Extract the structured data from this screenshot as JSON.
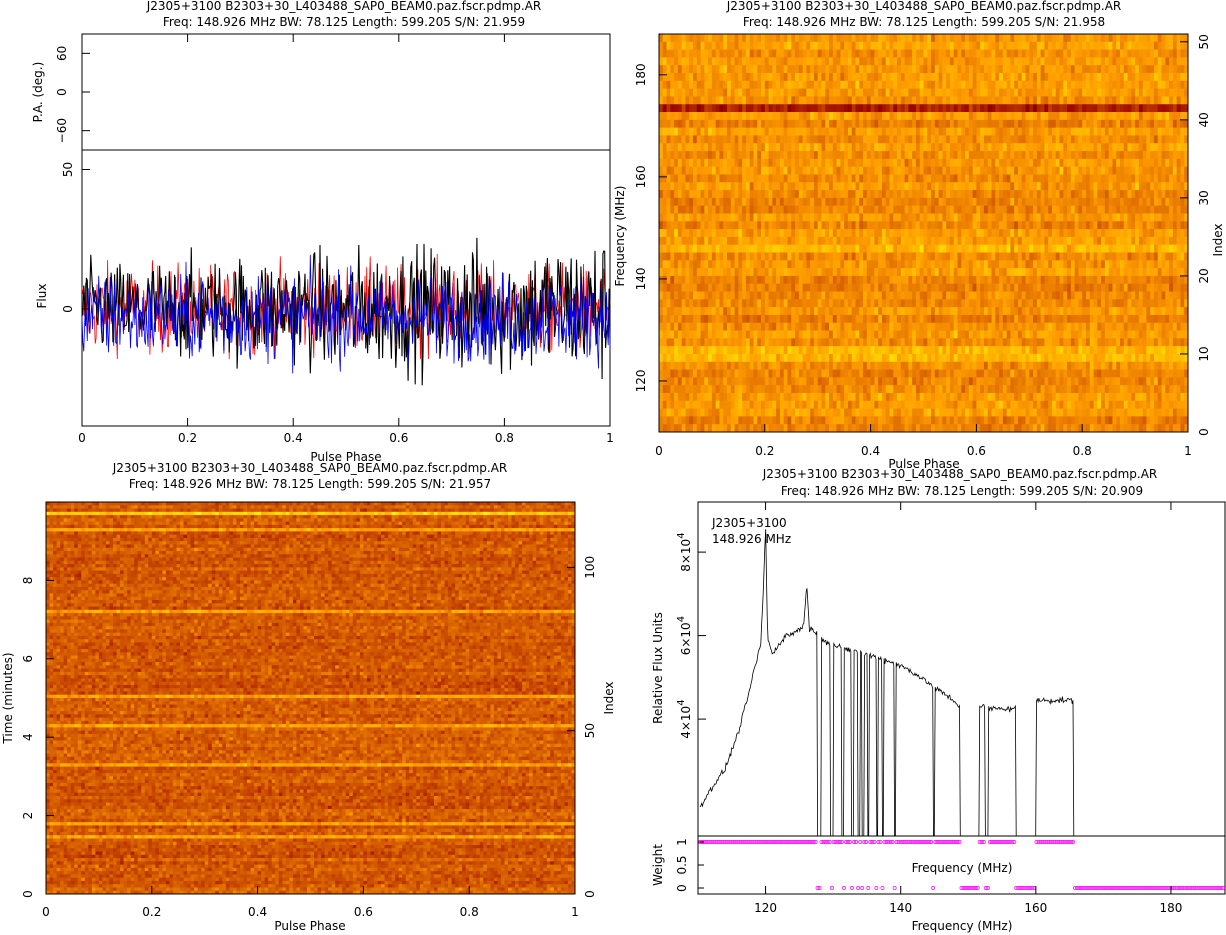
{
  "chart_data": [
    {
      "id": "profile",
      "type": "line",
      "title": "J2305+3100  B2303+30_L403488_SAP0_BEAM0.paz.fscr.pdmp.AR",
      "subtitle": "Freq: 148.926 MHz BW: 78.125 Length: 599.205 S/N: 21.959",
      "xlabel": "Pulse Phase",
      "pa_ylabel": "P.A. (deg.)",
      "ylabel": "Flux",
      "xlim": [
        0,
        1
      ],
      "pa_ylim": [
        -90,
        90
      ],
      "ylim": [
        -42,
        57
      ],
      "x_ticks": [
        "0",
        "0.2",
        "0.4",
        "0.6",
        "0.8",
        "1"
      ],
      "pa_ticks": [
        "60",
        "0",
        "−60"
      ],
      "y_ticks": [
        "0",
        "50"
      ],
      "series": [
        {
          "color": "#ff0000",
          "baseline": 0,
          "spread": 11
        },
        {
          "color": "#000000",
          "baseline": 0,
          "spread": 14
        },
        {
          "color": "#0000ff",
          "baseline": -3,
          "spread": 11
        }
      ]
    },
    {
      "id": "freq-phase",
      "type": "heatmap",
      "title": "J2305+3100  B2303+30_L403488_SAP0_BEAM0.paz.fscr.pdmp.AR",
      "subtitle": "Freq: 148.926 MHz BW: 78.125 Length: 599.205 S/N: 21.958",
      "xlabel": "Pulse Phase",
      "ylabel": "Frequency (MHz)",
      "ylabel_right": "Index",
      "xlim": [
        0,
        1
      ],
      "ylim": [
        110,
        188
      ],
      "right_ylim": [
        0,
        51
      ],
      "x_ticks": [
        "0",
        "0.2",
        "0.4",
        "0.6",
        "0.8",
        "1"
      ],
      "y_ticks": [
        "120",
        "140",
        "160",
        "180"
      ],
      "right_ticks": [
        "0",
        "10",
        "20",
        "30",
        "40",
        "50"
      ],
      "colormap": "heat"
    },
    {
      "id": "time-phase",
      "type": "heatmap",
      "title": "J2305+3100  B2303+30_L403488_SAP0_BEAM0.paz.fscr.pdmp.AR",
      "subtitle": "Freq: 148.926 MHz BW: 78.125 Length: 599.205 S/N: 21.957",
      "xlabel": "Pulse Phase",
      "ylabel": "Time (minutes)",
      "ylabel_right": "Index",
      "xlim": [
        0,
        1
      ],
      "ylim": [
        0,
        10
      ],
      "right_ylim": [
        0,
        120
      ],
      "x_ticks": [
        "0",
        "0.2",
        "0.4",
        "0.6",
        "0.8",
        "1"
      ],
      "y_ticks": [
        "0",
        "2",
        "4",
        "6",
        "8"
      ],
      "right_ticks": [
        "0",
        "50",
        "100"
      ],
      "colormap": "heat"
    },
    {
      "id": "bandpass",
      "type": "line",
      "title": "J2305+3100  B2303+30_L403488_SAP0_BEAM0.paz.fscr.pdmp.AR",
      "subtitle": "Freq: 148.926 MHz BW: 78.125 Length: 599.205 S/N: 20.909",
      "inset_line1": "J2305+3100",
      "inset_line2": "148.926 MHz",
      "xlabel": "Frequency (MHz)",
      "ylabel": "Relative Flux Units",
      "weight_ylabel": "Weight",
      "weight_xlabel_inner": "Frequency (MHz)",
      "xlim": [
        110,
        188
      ],
      "ylim": [
        12000,
        92000
      ],
      "y_ticks": [
        {
          "value": 40000,
          "mantissa": "4×10",
          "exp": "4"
        },
        {
          "value": 60000,
          "mantissa": "6×10",
          "exp": "4"
        },
        {
          "value": 80000,
          "mantissa": "8×10",
          "exp": "4"
        }
      ],
      "weight_ticks": [
        "0",
        "0.5",
        "1"
      ],
      "x_ticks": [
        "120",
        "140",
        "160",
        "180"
      ],
      "profile_points": [
        [
          110.3,
          19000
        ],
        [
          112,
          23500
        ],
        [
          114,
          28000
        ],
        [
          116,
          37000
        ],
        [
          117.5,
          46000
        ],
        [
          118.5,
          53000
        ],
        [
          119.3,
          58000
        ],
        [
          119.7,
          72000
        ],
        [
          120,
          87000
        ],
        [
          120.3,
          59500
        ],
        [
          121,
          55500
        ],
        [
          122,
          58000
        ],
        [
          123,
          60000
        ],
        [
          124,
          60500
        ],
        [
          125,
          61500
        ],
        [
          125.7,
          63000
        ],
        [
          126.1,
          72500
        ],
        [
          126.5,
          61500
        ],
        [
          127.5,
          61000
        ],
        [
          129,
          58500
        ],
        [
          131,
          57000
        ],
        [
          133,
          56500
        ],
        [
          135,
          55500
        ],
        [
          137,
          54500
        ],
        [
          139,
          53500
        ],
        [
          141,
          52000
        ],
        [
          143,
          50000
        ],
        [
          145,
          47500
        ],
        [
          147,
          45500
        ],
        [
          148.5,
          43500
        ],
        [
          150,
          41500
        ]
      ],
      "gaps": [
        [
          127.6,
          128.2
        ],
        [
          129.6,
          130.0
        ],
        [
          131.3,
          131.6
        ],
        [
          132.7,
          133.0
        ],
        [
          133.7,
          133.95
        ],
        [
          134.3,
          134.6
        ],
        [
          135.1,
          135.35
        ],
        [
          136.4,
          136.7
        ],
        [
          137.2,
          137.45
        ],
        [
          139.0,
          139.3
        ],
        [
          144.8,
          145.1
        ],
        [
          148.8,
          151.6
        ],
        [
          152.5,
          153.0
        ],
        [
          157.1,
          160.0
        ],
        [
          165.6,
          188.0
        ]
      ],
      "band_segments": [
        {
          "x0": 151.6,
          "x1": 152.5,
          "y": 43000
        },
        {
          "x0": 153.0,
          "x1": 157.1,
          "y": 42500
        },
        {
          "x0": 160.0,
          "x1": 165.6,
          "y": 44500
        }
      ],
      "weight_marker_color": "#ff00ff"
    }
  ]
}
